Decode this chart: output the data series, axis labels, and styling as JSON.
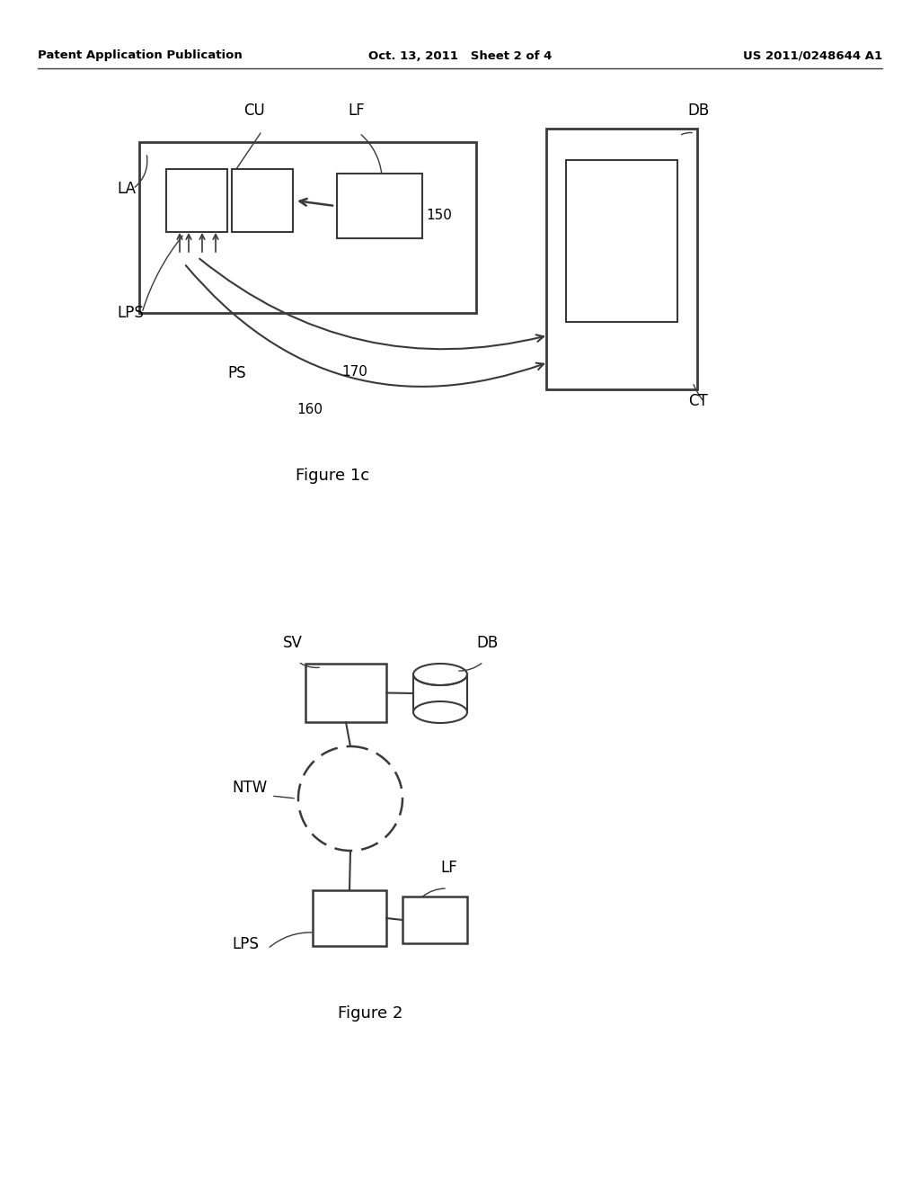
{
  "bg_color": "#ffffff",
  "header_left": "Patent Application Publication",
  "header_center": "Oct. 13, 2011   Sheet 2 of 4",
  "header_right": "US 2011/0248644 A1",
  "fig1c_caption": "Figure 1c",
  "fig2_caption": "Figure 2",
  "line_color": "#3a3a3a",
  "text_color": "#000000"
}
